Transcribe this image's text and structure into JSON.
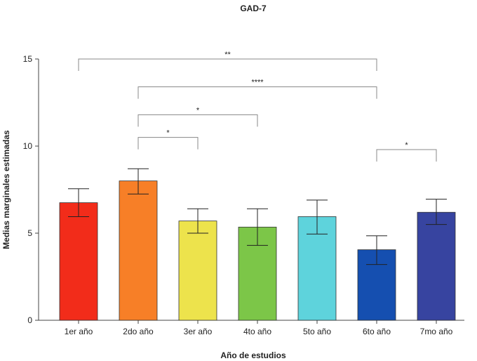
{
  "chart_data": {
    "type": "bar",
    "title": "GAD-7",
    "xlabel": "Año de estudios",
    "ylabel": "Medias marginales estimadas",
    "ylim": [
      0,
      15
    ],
    "yticks": [
      0,
      5,
      10,
      15
    ],
    "categories": [
      "1er año",
      "2do año",
      "3er año",
      "4to año",
      "5to año",
      "6to año",
      "7mo año"
    ],
    "values": [
      6.75,
      8.0,
      5.7,
      5.35,
      5.95,
      4.05,
      6.2
    ],
    "error_low": [
      5.95,
      7.25,
      5.0,
      4.3,
      4.95,
      3.2,
      5.5
    ],
    "error_high": [
      7.55,
      8.7,
      6.4,
      6.4,
      6.9,
      4.85,
      6.95
    ],
    "colors": [
      "#f22c1a",
      "#f77f27",
      "#ede34c",
      "#7cc648",
      "#5ed3dc",
      "#154fb0",
      "#3744a0"
    ],
    "significance": [
      {
        "from": 0,
        "to": 5,
        "label": "**",
        "level": 15.0
      },
      {
        "from": 1,
        "to": 5,
        "label": "****",
        "level": 13.4
      },
      {
        "from": 1,
        "to": 3,
        "label": "*",
        "level": 11.8
      },
      {
        "from": 1,
        "to": 2,
        "label": "*",
        "level": 10.5
      },
      {
        "from": 5,
        "to": 6,
        "label": "*",
        "level": 9.8
      }
    ],
    "grid": false,
    "legend": "none"
  }
}
